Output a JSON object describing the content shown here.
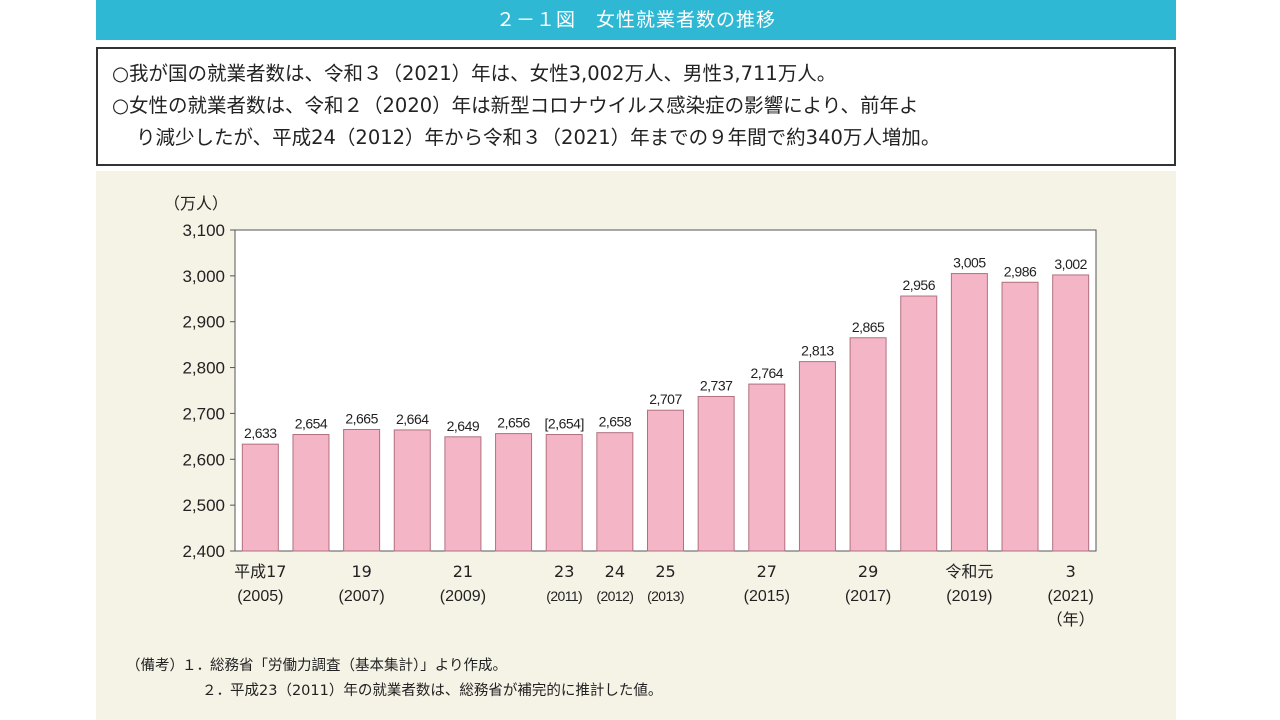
{
  "header": {
    "title": "２－１図　女性就業者数の推移"
  },
  "summary": {
    "line1": "○我が国の就業者数は、令和３（2021）年は、女性3,002万人、男性3,711万人。",
    "line2": "○女性の就業者数は、令和２（2020）年は新型コロナウイルス感染症の影響により、前年よ",
    "line3": "り減少したが、平成24（2012）年から令和３（2021）年までの９年間で約340万人増加。"
  },
  "chart_data": {
    "type": "bar",
    "unit_label": "（万人）",
    "x_unit_label": "（年）",
    "ylim": [
      2400,
      3100
    ],
    "yticks": [
      2400,
      2500,
      2600,
      2700,
      2800,
      2900,
      3000,
      3100
    ],
    "ytick_labels": [
      "2,400",
      "2,500",
      "2,600",
      "2,700",
      "2,800",
      "2,900",
      "3,000",
      "3,100"
    ],
    "bar_color": "#f4b6c6",
    "bar_stroke": "#b0707f",
    "grid": false,
    "values": [
      2633,
      2654,
      2665,
      2664,
      2649,
      2656,
      2654,
      2658,
      2707,
      2737,
      2764,
      2813,
      2865,
      2956,
      3005,
      2986,
      3002
    ],
    "value_labels": [
      "2,633",
      "2,654",
      "2,665",
      "2,664",
      "2,649",
      "2,656",
      "[2,654]",
      "2,658",
      "2,707",
      "2,737",
      "2,764",
      "2,813",
      "2,865",
      "2,956",
      "3,005",
      "2,986",
      "3,002"
    ],
    "categories": [
      {
        "era": "平成17",
        "year": "(2005)"
      },
      {
        "era": "",
        "year": ""
      },
      {
        "era": "19",
        "year": "(2007)"
      },
      {
        "era": "",
        "year": ""
      },
      {
        "era": "21",
        "year": "(2009)"
      },
      {
        "era": "",
        "year": ""
      },
      {
        "era": "23",
        "year": "(2011)"
      },
      {
        "era": "24",
        "year": "(2012)"
      },
      {
        "era": "25",
        "year": "(2013)"
      },
      {
        "era": "",
        "year": ""
      },
      {
        "era": "27",
        "year": "(2015)"
      },
      {
        "era": "",
        "year": ""
      },
      {
        "era": "29",
        "year": "(2017)"
      },
      {
        "era": "",
        "year": ""
      },
      {
        "era": "令和元",
        "year": "(2019)"
      },
      {
        "era": "",
        "year": ""
      },
      {
        "era": "3",
        "year": "(2021)"
      }
    ]
  },
  "notes": {
    "label": "（備考）",
    "n1_num": "１．",
    "n1_text": "総務省「労働力調査（基本集計）」より作成。",
    "n2_num": "２．",
    "n2_text": "平成23（2011）年の就業者数は、総務省が補完的に推計した値。"
  }
}
